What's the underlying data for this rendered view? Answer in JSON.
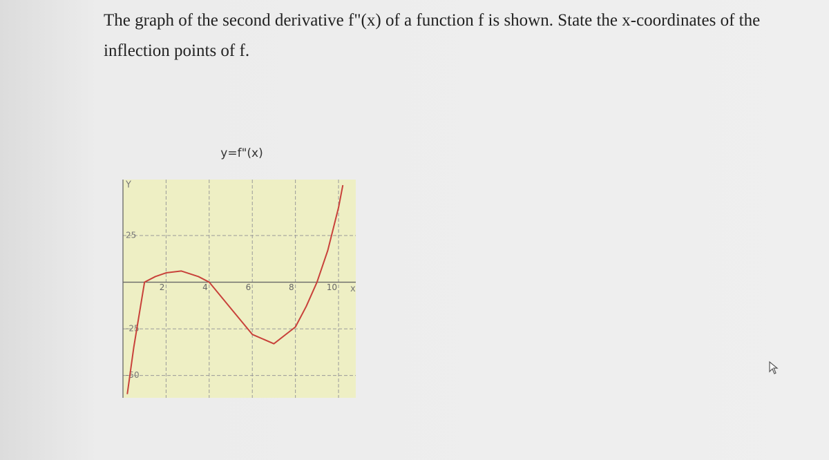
{
  "question": "The graph of the second derivative f\"(x) of a function f is shown. State the x-coordinates of the inflection points of f.",
  "chart_data": {
    "type": "line",
    "title": "y=f\"(x)",
    "y_axis_label": "Y",
    "x_axis_label": "x",
    "x": [
      0.2,
      0.5,
      1,
      1.5,
      2,
      2.7,
      3.5,
      4,
      5,
      6,
      7,
      8,
      8.5,
      9,
      9.5,
      10,
      10.2
    ],
    "series": [
      {
        "name": "f\"(x)",
        "color": "#c8413a",
        "values": [
          -60,
          -35,
          0,
          3,
          5,
          6,
          3,
          0,
          -14,
          -28,
          -33,
          -24,
          -13,
          0,
          17,
          40,
          52
        ]
      }
    ],
    "xlim": [
      0,
      10.8
    ],
    "ylim": [
      -62,
      55
    ],
    "xticks": [
      2,
      4,
      6,
      8,
      10
    ],
    "yticks": [
      -50,
      -25,
      25
    ],
    "grid": true
  }
}
